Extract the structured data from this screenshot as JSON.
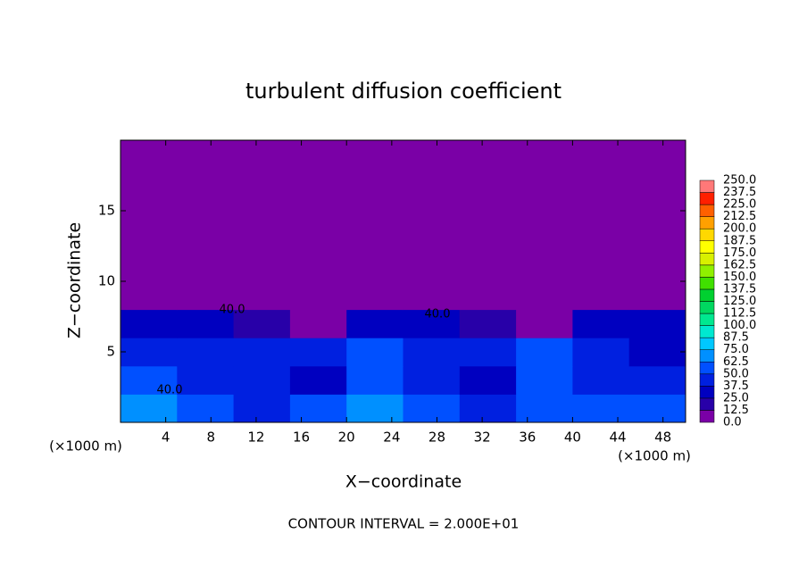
{
  "chart_data": {
    "type": "contour",
    "title": "turbulent diffusion coefficient",
    "x_label": "X−coordinate",
    "y_label": "Z−coordinate",
    "x_unit": "(×1000 m)",
    "y_unit": "(×1000 m)",
    "note": "CONTOUR INTERVAL = 2.000E+01",
    "contour_labels": [
      "40.0",
      "40.0",
      "40.0"
    ],
    "xlim": [
      0,
      50
    ],
    "ylim": [
      0,
      20
    ],
    "xticks": [
      4,
      8,
      12,
      16,
      20,
      24,
      28,
      32,
      36,
      40,
      44,
      48
    ],
    "yticks": [
      5,
      10,
      15
    ],
    "x_edges": [
      0,
      5,
      10,
      15,
      20,
      25,
      30,
      35,
      40,
      45,
      50
    ],
    "z_edges": [
      0,
      2,
      4,
      6,
      8,
      20
    ],
    "z": [
      [
        70,
        55,
        45,
        50,
        65,
        55,
        45,
        50,
        60,
        55
      ],
      [
        50,
        40,
        45,
        35,
        60,
        40,
        35,
        50,
        45,
        40
      ],
      [
        45,
        40,
        40,
        45,
        50,
        40,
        45,
        55,
        40,
        35
      ],
      [
        30,
        30,
        20,
        10,
        25,
        35,
        20,
        10,
        35,
        30
      ],
      [
        0,
        0,
        0,
        0,
        0,
        5,
        0,
        0,
        0,
        0
      ]
    ],
    "levels": [
      {
        "value": 0,
        "label": "0.0"
      },
      12.5,
      {
        "value": 25,
        "label": "25.0"
      },
      37.5,
      {
        "value": 50,
        "label": "50.0"
      },
      62.5,
      {
        "value": 75,
        "label": "75.0"
      },
      87.5,
      {
        "value": 100,
        "label": "100.0"
      },
      112.5,
      {
        "value": 125,
        "label": "125.0"
      },
      137.5,
      {
        "value": 150,
        "label": "150.0"
      },
      162.5,
      {
        "value": 175,
        "label": "175.0"
      },
      187.5,
      {
        "value": 200,
        "label": "200.0"
      },
      212.5,
      {
        "value": 225,
        "label": "225.0"
      },
      237.5,
      {
        "value": 250,
        "label": "250.0"
      }
    ],
    "colors": [
      "#7a00a6",
      "#2800a8",
      "#0000c0",
      "#0020e0",
      "#0050ff",
      "#0090ff",
      "#00c8ff",
      "#00e8d0",
      "#00e890",
      "#00d860",
      "#00d030",
      "#40e000",
      "#90f000",
      "#d8f000",
      "#ffff00",
      "#ffd800",
      "#ffa000",
      "#ff6000",
      "#ff2000",
      "#ff7878"
    ]
  }
}
